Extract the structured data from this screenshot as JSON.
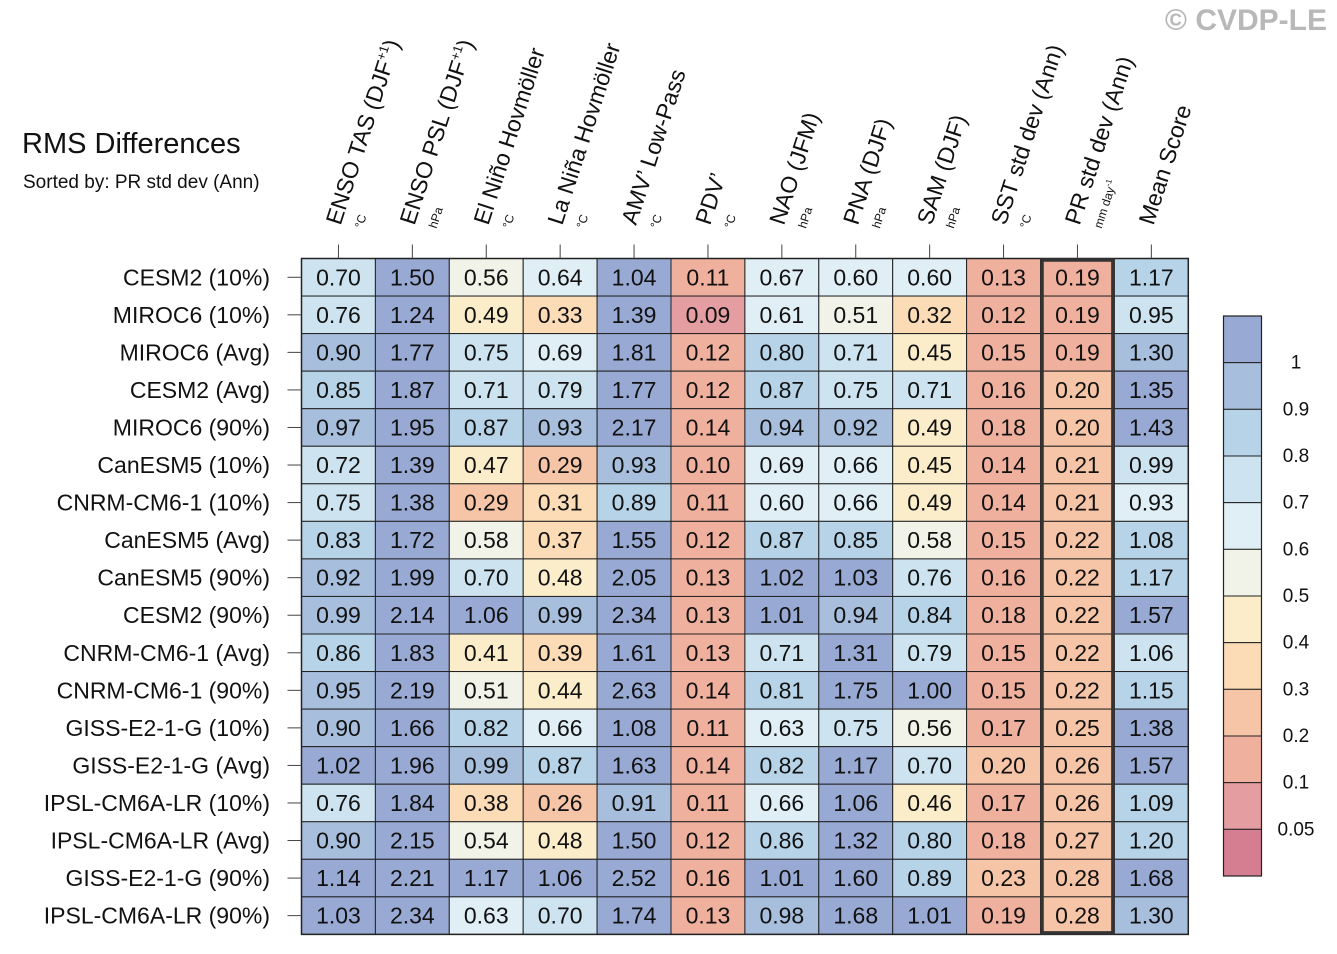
{
  "header": {
    "title": "RMS Differences",
    "subtitle": "Sorted by: PR std dev (Ann)",
    "copyright": "© CVDP-LE"
  },
  "chart_data": {
    "type": "heatmap",
    "title": "RMS Differences",
    "subtitle": "Sorted by: PR std dev (Ann)",
    "columns": [
      {
        "name": "ENSO TAS (DJF",
        "sup": "+1",
        "close": ")",
        "unit": "°C"
      },
      {
        "name": "ENSO PSL (DJF",
        "sup": "+1",
        "close": ")",
        "unit": "hPa"
      },
      {
        "name": "El Niño Hovmöller",
        "sup": "",
        "close": "",
        "unit": "°C"
      },
      {
        "name": "La Niña Hovmöller",
        "sup": "",
        "close": "",
        "unit": "°C"
      },
      {
        "name": "AMV’ Low-Pass",
        "sup": "",
        "close": "",
        "unit": "°C"
      },
      {
        "name": "PDV’",
        "sup": "",
        "close": "",
        "unit": "°C"
      },
      {
        "name": "NAO (JFM)",
        "sup": "",
        "close": "",
        "unit": "hPa"
      },
      {
        "name": "PNA (DJF)",
        "sup": "",
        "close": "",
        "unit": "hPa"
      },
      {
        "name": "SAM (DJF)",
        "sup": "",
        "close": "",
        "unit": "hPa"
      },
      {
        "name": "SST std dev (Ann)",
        "sup": "",
        "close": "",
        "unit": "°C"
      },
      {
        "name": "PR std dev (Ann)",
        "sup": "",
        "close": "",
        "unit": "mm day",
        "unit_sup": "-1"
      },
      {
        "name": "Mean Score",
        "sup": "",
        "close": "",
        "unit": ""
      }
    ],
    "rows": [
      "CESM2 (10%)",
      "MIROC6 (10%)",
      "MIROC6 (Avg)",
      "CESM2 (Avg)",
      "MIROC6 (90%)",
      "CanESM5 (10%)",
      "CNRM-CM6-1 (10%)",
      "CanESM5 (Avg)",
      "CanESM5 (90%)",
      "CESM2 (90%)",
      "CNRM-CM6-1 (Avg)",
      "CNRM-CM6-1 (90%)",
      "GISS-E2-1-G (10%)",
      "GISS-E2-1-G (Avg)",
      "IPSL-CM6A-LR (10%)",
      "IPSL-CM6A-LR (Avg)",
      "GISS-E2-1-G (90%)",
      "IPSL-CM6A-LR (90%)"
    ],
    "values": [
      [
        "0.70",
        "1.50",
        "0.56",
        "0.64",
        "1.04",
        "0.11",
        "0.67",
        "0.60",
        "0.60",
        "0.13",
        "0.19",
        "1.17"
      ],
      [
        "0.76",
        "1.24",
        "0.49",
        "0.33",
        "1.39",
        "0.09",
        "0.61",
        "0.51",
        "0.32",
        "0.12",
        "0.19",
        "0.95"
      ],
      [
        "0.90",
        "1.77",
        "0.75",
        "0.69",
        "1.81",
        "0.12",
        "0.80",
        "0.71",
        "0.45",
        "0.15",
        "0.19",
        "1.30"
      ],
      [
        "0.85",
        "1.87",
        "0.71",
        "0.79",
        "1.77",
        "0.12",
        "0.87",
        "0.75",
        "0.71",
        "0.16",
        "0.20",
        "1.35"
      ],
      [
        "0.97",
        "1.95",
        "0.87",
        "0.93",
        "2.17",
        "0.14",
        "0.94",
        "0.92",
        "0.49",
        "0.18",
        "0.20",
        "1.43"
      ],
      [
        "0.72",
        "1.39",
        "0.47",
        "0.29",
        "0.93",
        "0.10",
        "0.69",
        "0.66",
        "0.45",
        "0.14",
        "0.21",
        "0.99"
      ],
      [
        "0.75",
        "1.38",
        "0.29",
        "0.31",
        "0.89",
        "0.11",
        "0.60",
        "0.66",
        "0.49",
        "0.14",
        "0.21",
        "0.93"
      ],
      [
        "0.83",
        "1.72",
        "0.58",
        "0.37",
        "1.55",
        "0.12",
        "0.87",
        "0.85",
        "0.58",
        "0.15",
        "0.22",
        "1.08"
      ],
      [
        "0.92",
        "1.99",
        "0.70",
        "0.48",
        "2.05",
        "0.13",
        "1.02",
        "1.03",
        "0.76",
        "0.16",
        "0.22",
        "1.17"
      ],
      [
        "0.99",
        "2.14",
        "1.06",
        "0.99",
        "2.34",
        "0.13",
        "1.01",
        "0.94",
        "0.84",
        "0.18",
        "0.22",
        "1.57"
      ],
      [
        "0.86",
        "1.83",
        "0.41",
        "0.39",
        "1.61",
        "0.13",
        "0.71",
        "1.31",
        "0.79",
        "0.15",
        "0.22",
        "1.06"
      ],
      [
        "0.95",
        "2.19",
        "0.51",
        "0.44",
        "2.63",
        "0.14",
        "0.81",
        "1.75",
        "1.00",
        "0.15",
        "0.22",
        "1.15"
      ],
      [
        "0.90",
        "1.66",
        "0.82",
        "0.66",
        "1.08",
        "0.11",
        "0.63",
        "0.75",
        "0.56",
        "0.17",
        "0.25",
        "1.38"
      ],
      [
        "1.02",
        "1.96",
        "0.99",
        "0.87",
        "1.63",
        "0.14",
        "0.82",
        "1.17",
        "0.70",
        "0.20",
        "0.26",
        "1.57"
      ],
      [
        "0.76",
        "1.84",
        "0.38",
        "0.26",
        "0.91",
        "0.11",
        "0.66",
        "1.06",
        "0.46",
        "0.17",
        "0.26",
        "1.09"
      ],
      [
        "0.90",
        "2.15",
        "0.54",
        "0.48",
        "1.50",
        "0.12",
        "0.86",
        "1.32",
        "0.80",
        "0.18",
        "0.27",
        "1.20"
      ],
      [
        "1.14",
        "2.21",
        "1.17",
        "1.06",
        "2.52",
        "0.16",
        "1.01",
        "1.60",
        "0.89",
        "0.23",
        "0.28",
        "1.68"
      ],
      [
        "1.03",
        "2.34",
        "0.63",
        "0.70",
        "1.74",
        "0.13",
        "0.98",
        "1.68",
        "1.01",
        "0.19",
        "0.28",
        "1.30"
      ]
    ],
    "highlight_column": "PR std dev (Ann)",
    "colorbar": {
      "labels": [
        "1",
        "0.9",
        "0.8",
        "0.7",
        "0.6",
        "0.5",
        "0.4",
        "0.3",
        "0.2",
        "0.1",
        "0.05"
      ],
      "thresholds": [
        0.05,
        0.1,
        0.2,
        0.3,
        0.4,
        0.5,
        0.6,
        0.7,
        0.8,
        0.9,
        1
      ],
      "colors": [
        "#d67e91",
        "#e49da0",
        "#f0b09e",
        "#f6c4a6",
        "#fcdcb7",
        "#fbecca",
        "#f2f3e8",
        "#e0eff6",
        "#cde4f0",
        "#b7d3e8",
        "#a7bedd",
        "#98a9d3"
      ]
    }
  }
}
